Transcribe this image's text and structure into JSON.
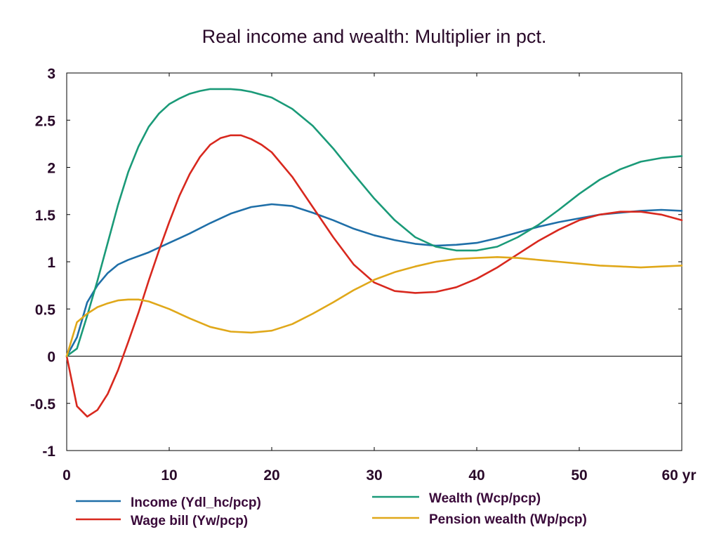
{
  "chart_data": {
    "type": "line",
    "title": "Real income and wealth: Multiplier in pct.",
    "xlabel": "",
    "ylabel": "",
    "xlim": [
      0,
      60
    ],
    "ylim": [
      -1,
      3
    ],
    "x_ticks": [
      0,
      10,
      20,
      30,
      40,
      50,
      60
    ],
    "x_tick_labels": [
      "0",
      "10",
      "20",
      "30",
      "40",
      "50",
      "60 yr"
    ],
    "y_ticks": [
      -1,
      -0.5,
      0,
      0.5,
      1,
      1.5,
      2,
      2.5,
      3
    ],
    "y_tick_labels": [
      "-1",
      "-0.5",
      "0",
      "0.5",
      "1",
      "1.5",
      "2",
      "2.5",
      "3"
    ],
    "grid": false,
    "zero_line": true,
    "legend_position": "bottom",
    "series": [
      {
        "name": "Income (Ydl_hc/pcp)",
        "color": "#1f6fa8",
        "x": [
          0,
          1,
          2,
          3,
          4,
          5,
          6,
          8,
          10,
          12,
          14,
          16,
          18,
          20,
          22,
          24,
          26,
          28,
          30,
          32,
          34,
          36,
          38,
          40,
          42,
          44,
          46,
          48,
          50,
          52,
          54,
          56,
          58,
          60
        ],
        "y": [
          0,
          0.2,
          0.57,
          0.75,
          0.88,
          0.97,
          1.02,
          1.1,
          1.2,
          1.3,
          1.41,
          1.51,
          1.58,
          1.61,
          1.59,
          1.52,
          1.44,
          1.35,
          1.28,
          1.23,
          1.19,
          1.17,
          1.18,
          1.2,
          1.25,
          1.31,
          1.37,
          1.42,
          1.46,
          1.5,
          1.52,
          1.54,
          1.55,
          1.54
        ]
      },
      {
        "name": "Wage bill (Yw/pcp)",
        "color": "#d8281e",
        "x": [
          0,
          1,
          2,
          3,
          4,
          5,
          6,
          7,
          8,
          9,
          10,
          11,
          12,
          13,
          14,
          15,
          16,
          17,
          18,
          19,
          20,
          22,
          24,
          26,
          28,
          30,
          32,
          34,
          36,
          38,
          40,
          42,
          44,
          46,
          48,
          50,
          52,
          54,
          56,
          58,
          60
        ],
        "y": [
          0,
          -0.53,
          -0.64,
          -0.57,
          -0.4,
          -0.15,
          0.15,
          0.46,
          0.8,
          1.12,
          1.42,
          1.7,
          1.93,
          2.11,
          2.24,
          2.31,
          2.34,
          2.34,
          2.3,
          2.24,
          2.16,
          1.9,
          1.58,
          1.26,
          0.97,
          0.78,
          0.69,
          0.67,
          0.68,
          0.73,
          0.82,
          0.94,
          1.08,
          1.22,
          1.34,
          1.44,
          1.5,
          1.53,
          1.53,
          1.5,
          1.44
        ]
      },
      {
        "name": "Wealth (Wcp/pcp)",
        "color": "#1a9a78",
        "x": [
          0,
          1,
          2,
          3,
          4,
          5,
          6,
          7,
          8,
          9,
          10,
          11,
          12,
          13,
          14,
          15,
          16,
          17,
          18,
          20,
          22,
          24,
          26,
          28,
          30,
          32,
          34,
          36,
          38,
          40,
          42,
          44,
          46,
          48,
          50,
          52,
          54,
          56,
          58,
          60
        ],
        "y": [
          0,
          0.08,
          0.43,
          0.8,
          1.2,
          1.6,
          1.95,
          2.22,
          2.43,
          2.57,
          2.67,
          2.73,
          2.78,
          2.81,
          2.83,
          2.83,
          2.83,
          2.82,
          2.8,
          2.74,
          2.62,
          2.44,
          2.2,
          1.93,
          1.67,
          1.44,
          1.26,
          1.16,
          1.12,
          1.12,
          1.16,
          1.26,
          1.39,
          1.55,
          1.72,
          1.87,
          1.98,
          2.06,
          2.1,
          2.12
        ]
      },
      {
        "name": "Pension wealth (Wp/pcp)",
        "color": "#e0a81a",
        "x": [
          0,
          1,
          2,
          3,
          4,
          5,
          6,
          7,
          8,
          10,
          12,
          14,
          16,
          18,
          20,
          22,
          24,
          26,
          28,
          30,
          32,
          34,
          36,
          38,
          40,
          42,
          44,
          46,
          48,
          50,
          52,
          54,
          56,
          58,
          60
        ],
        "y": [
          0,
          0.36,
          0.45,
          0.52,
          0.56,
          0.59,
          0.6,
          0.6,
          0.58,
          0.5,
          0.4,
          0.31,
          0.26,
          0.25,
          0.27,
          0.34,
          0.45,
          0.57,
          0.7,
          0.81,
          0.89,
          0.95,
          1.0,
          1.03,
          1.04,
          1.05,
          1.04,
          1.02,
          1.0,
          0.98,
          0.96,
          0.95,
          0.94,
          0.95,
          0.96
        ]
      }
    ]
  }
}
